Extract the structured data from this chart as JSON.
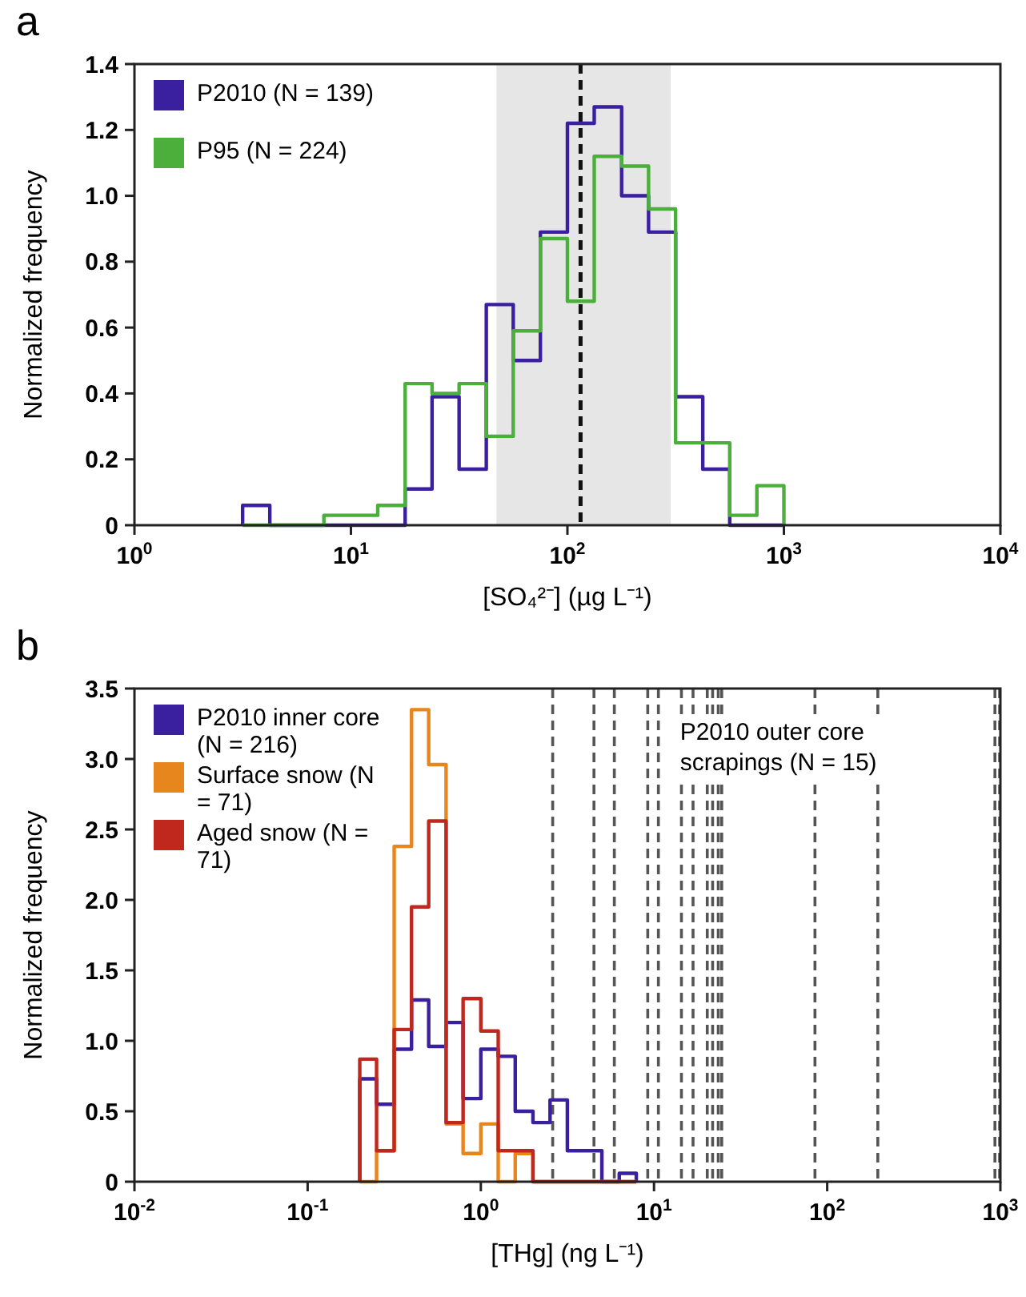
{
  "chart_data": [
    {
      "type": "histogram",
      "title": "a",
      "xlabel": "[SO₄²⁻] (µg L⁻¹)",
      "ylabel": "Normalized frequency",
      "log": "x",
      "legend": "top left",
      "bins": [
        3.16,
        4.22,
        5.62,
        7.5,
        10,
        13.3,
        17.8,
        23.7,
        31.6,
        42.2,
        56.2,
        75,
        100,
        133,
        178,
        237,
        316,
        422,
        562,
        750,
        1000
      ],
      "series": [
        {
          "name": "P2010 (N = 139)",
          "color": "#3a1f9e",
          "values": [
            0.06,
            0,
            0,
            0,
            0,
            0,
            0.11,
            0.39,
            0.17,
            0.67,
            0.5,
            0.89,
            1.22,
            1.27,
            1.0,
            0.89,
            0.39,
            0.17,
            0,
            0
          ]
        },
        {
          "name": "P95 (N = 224)",
          "color": "#4caf3c",
          "values": [
            0,
            0,
            0,
            0.03,
            0.03,
            0.06,
            0.43,
            0.4,
            0.43,
            0.27,
            0.59,
            0.87,
            0.68,
            1.12,
            1.09,
            0.96,
            0.25,
            0.25,
            0.03,
            0.12
          ]
        }
      ],
      "xlim": [
        1,
        10000
      ],
      "xticks": [
        {
          "value": 1,
          "label": "10$^{0}$"
        },
        {
          "value": 10,
          "label": "10$^{1}$"
        },
        {
          "value": 100,
          "label": "10$^{2}$"
        },
        {
          "value": 1000,
          "label": "10$^{3}$"
        },
        {
          "value": 10000,
          "label": "10$^{4}$"
        }
      ],
      "ylim": [
        0,
        1.4
      ],
      "yticks": [
        0,
        0.2,
        0.4,
        0.6,
        0.8,
        {
          "value": 1,
          "label": "1.0"
        },
        1.2,
        1.4
      ],
      "bands": [
        {
          "axis": "x",
          "from": 47,
          "to": 300,
          "color": "#e6e6e6"
        }
      ],
      "ref_lines": [
        {
          "axis": "x",
          "value": 115,
          "color": "#111111",
          "line_style": "dashed"
        }
      ]
    },
    {
      "type": "histogram",
      "title": "b",
      "xlabel": "[THg] (ng L⁻¹)",
      "ylabel": "Normalized frequency",
      "log": "x",
      "legend": "top left",
      "bins": [
        0.2,
        0.25,
        0.316,
        0.398,
        0.5,
        0.63,
        0.79,
        1.0,
        1.26,
        1.58,
        2.0,
        2.51,
        3.16,
        3.98,
        5.0,
        6.3,
        7.9
      ],
      "series": [
        {
          "name": "P2010 inner core (N = 216)",
          "color": "#3a1f9e",
          "values": [
            0.73,
            0.55,
            0.94,
            1.29,
            0.96,
            1.13,
            0.59,
            0.94,
            0.89,
            0.5,
            0.42,
            0.58,
            0.22,
            0.22,
            0,
            0.06
          ]
        },
        {
          "name": "Surface snow (N = 71)",
          "color": "#e8861e",
          "values": [
            0,
            0.22,
            2.38,
            3.35,
            2.96,
            0.41,
            0.2,
            0.41,
            0,
            0.2,
            0,
            0,
            0,
            0,
            0,
            0
          ]
        },
        {
          "name": "Aged snow (N = 71)",
          "color": "#c0281e",
          "values": [
            0.87,
            0.22,
            1.08,
            1.95,
            2.56,
            0.42,
            1.3,
            1.07,
            0.22,
            0.22,
            0,
            0,
            0,
            0,
            0,
            0
          ]
        }
      ],
      "xlim": [
        0.01,
        1000
      ],
      "xticks": [
        {
          "value": 0.01,
          "label": "10$^{-2}$"
        },
        {
          "value": 0.1,
          "label": "10$^{-1}$"
        },
        {
          "value": 1,
          "label": "10$^{0}$"
        },
        {
          "value": 10,
          "label": "10$^{1}$"
        },
        {
          "value": 100,
          "label": "10$^{2}$"
        },
        {
          "value": 1000,
          "label": "10$^{3}$"
        }
      ],
      "ylim": [
        0,
        3.5
      ],
      "yticks": [
        0,
        0.5,
        {
          "value": 1,
          "label": "1.0"
        },
        1.5,
        {
          "value": 2,
          "label": "2.0"
        },
        2.5,
        {
          "value": 3,
          "label": "3.0"
        },
        3.5
      ],
      "ref_lines": [
        {
          "axis": "x",
          "value": 2.6,
          "color": "#555555",
          "line_style": "dashed"
        },
        {
          "axis": "x",
          "value": 4.5,
          "color": "#555555",
          "line_style": "dashed"
        },
        {
          "axis": "x",
          "value": 5.9,
          "color": "#555555",
          "line_style": "dashed"
        },
        {
          "axis": "x",
          "value": 9.2,
          "color": "#555555",
          "line_style": "dashed"
        },
        {
          "axis": "x",
          "value": 10.6,
          "color": "#555555",
          "line_style": "dashed"
        },
        {
          "axis": "x",
          "value": 14.4,
          "color": "#555555",
          "line_style": "dashed"
        },
        {
          "axis": "x",
          "value": 16.8,
          "color": "#555555",
          "line_style": "dashed"
        },
        {
          "axis": "x",
          "value": 20.3,
          "color": "#555555",
          "line_style": "dashed"
        },
        {
          "axis": "x",
          "value": 21.8,
          "color": "#555555",
          "line_style": "dashed"
        },
        {
          "axis": "x",
          "value": 23.5,
          "color": "#555555",
          "line_style": "dashed"
        },
        {
          "axis": "x",
          "value": 24.6,
          "color": "#555555",
          "line_style": "dashed"
        },
        {
          "axis": "x",
          "value": 85,
          "color": "#555555",
          "line_style": "dashed"
        },
        {
          "axis": "x",
          "value": 196,
          "color": "#555555",
          "line_style": "dashed"
        },
        {
          "axis": "x",
          "value": 930,
          "color": "#555555",
          "line_style": "dashed"
        },
        {
          "axis": "x",
          "value": 990,
          "color": "#555555",
          "line_style": "dashed"
        }
      ],
      "annotations": [
        "P2010 outer core scrapings (N = 15)"
      ]
    }
  ]
}
